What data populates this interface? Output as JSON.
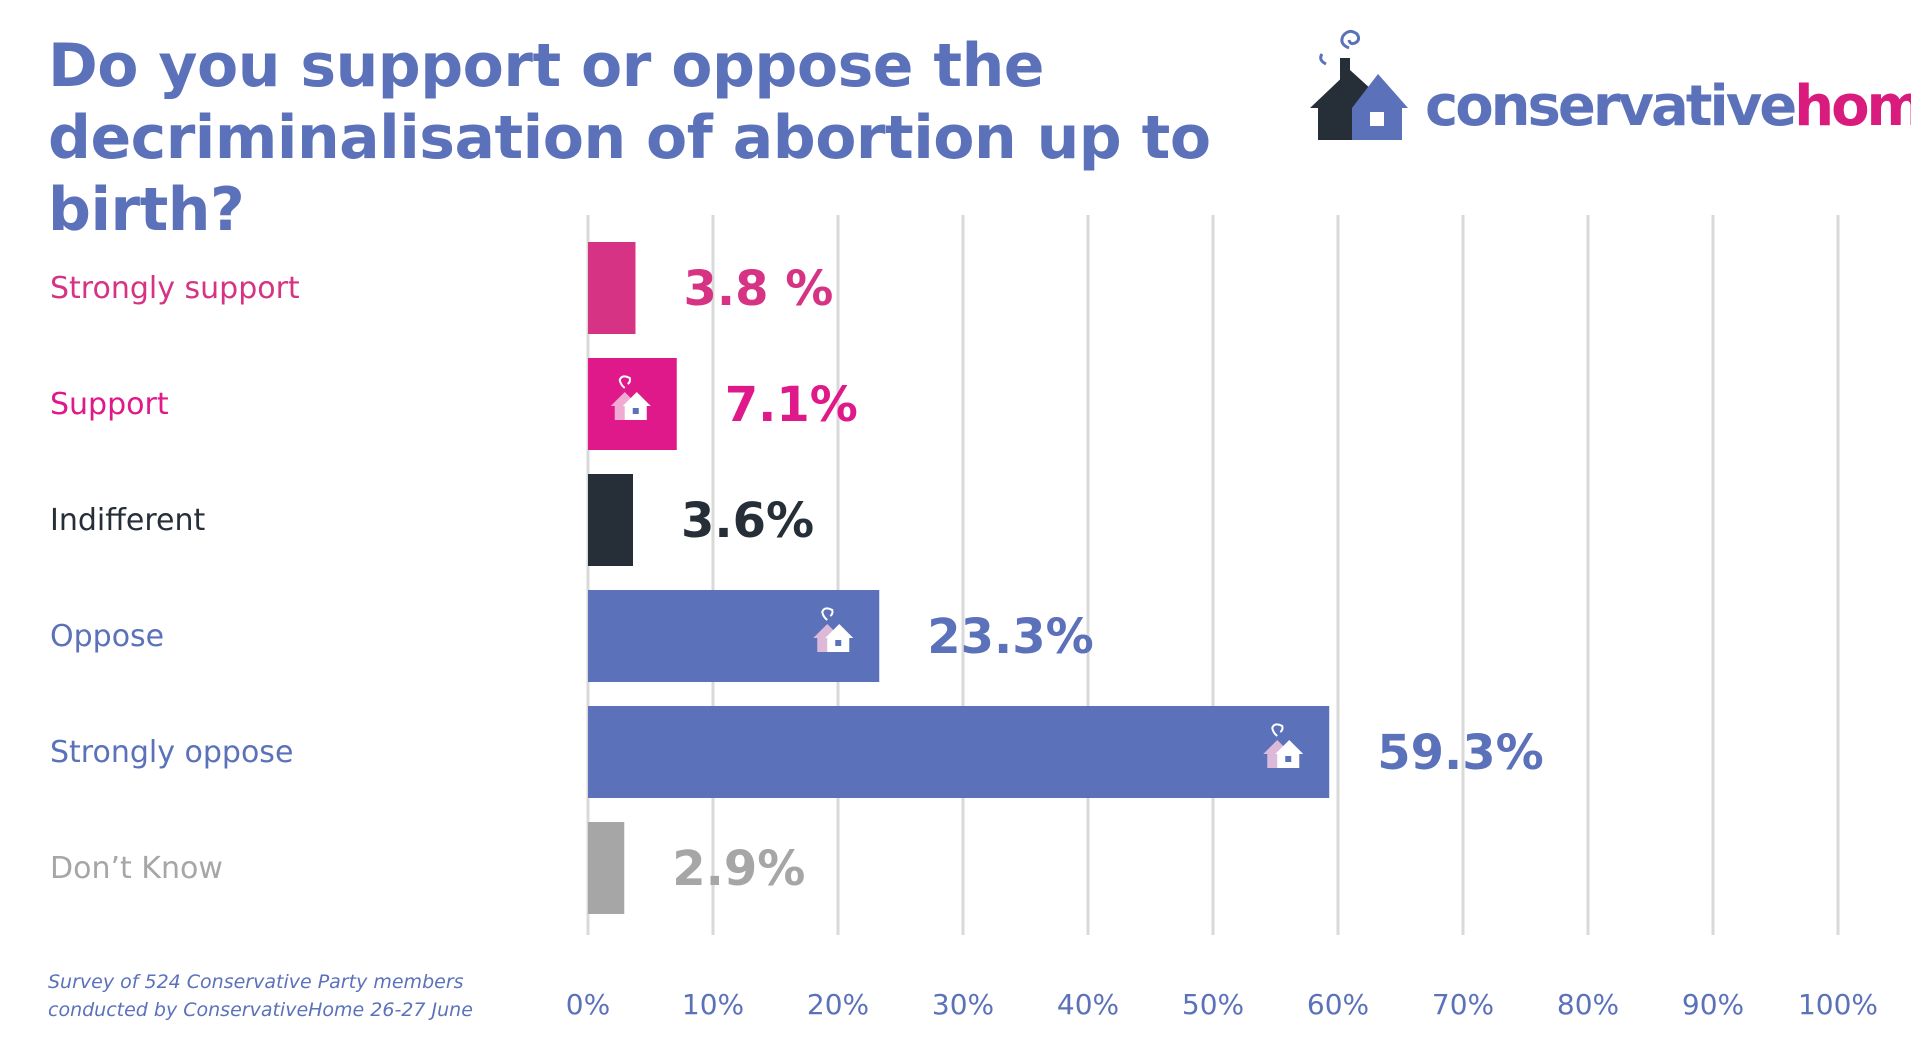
{
  "chart_data": {
    "type": "bar",
    "orientation": "horizontal",
    "title": "Do you support or oppose the decriminalisation of abortion up to birth?",
    "categories": [
      "Strongly support",
      "Support",
      "Indifferent",
      "Oppose",
      "Strongly oppose",
      "Don’t Know"
    ],
    "values": [
      3.8,
      7.1,
      3.6,
      23.3,
      59.3,
      2.9
    ],
    "value_labels": [
      "3.8 %",
      "7.1%",
      "3.6%",
      "23.3%",
      "59.3%",
      "2.9%"
    ],
    "colors": [
      "#d63384",
      "#e0198a",
      "#262f38",
      "#5b72ba",
      "#5b72ba",
      "#a6a6a6"
    ],
    "house_icon_on": [
      false,
      true,
      false,
      true,
      true,
      false
    ],
    "x_ticks": [
      "0%",
      "10%",
      "20%",
      "30%",
      "40%",
      "50%",
      "60%",
      "70%",
      "80%",
      "90%",
      "100%"
    ],
    "xlim": [
      0,
      100
    ],
    "grid": true,
    "legend": "none",
    "footnote": "Survey of 524 Conservative Party members\nconducted by ConservativeHome 26-27 June"
  },
  "logo": {
    "part1": "conservative",
    "part2": "home",
    "icon": "house-with-smoke-icon",
    "colors": {
      "blue": "#5b72ba",
      "dark": "#262f38",
      "magenta": "#d81b7c"
    }
  }
}
